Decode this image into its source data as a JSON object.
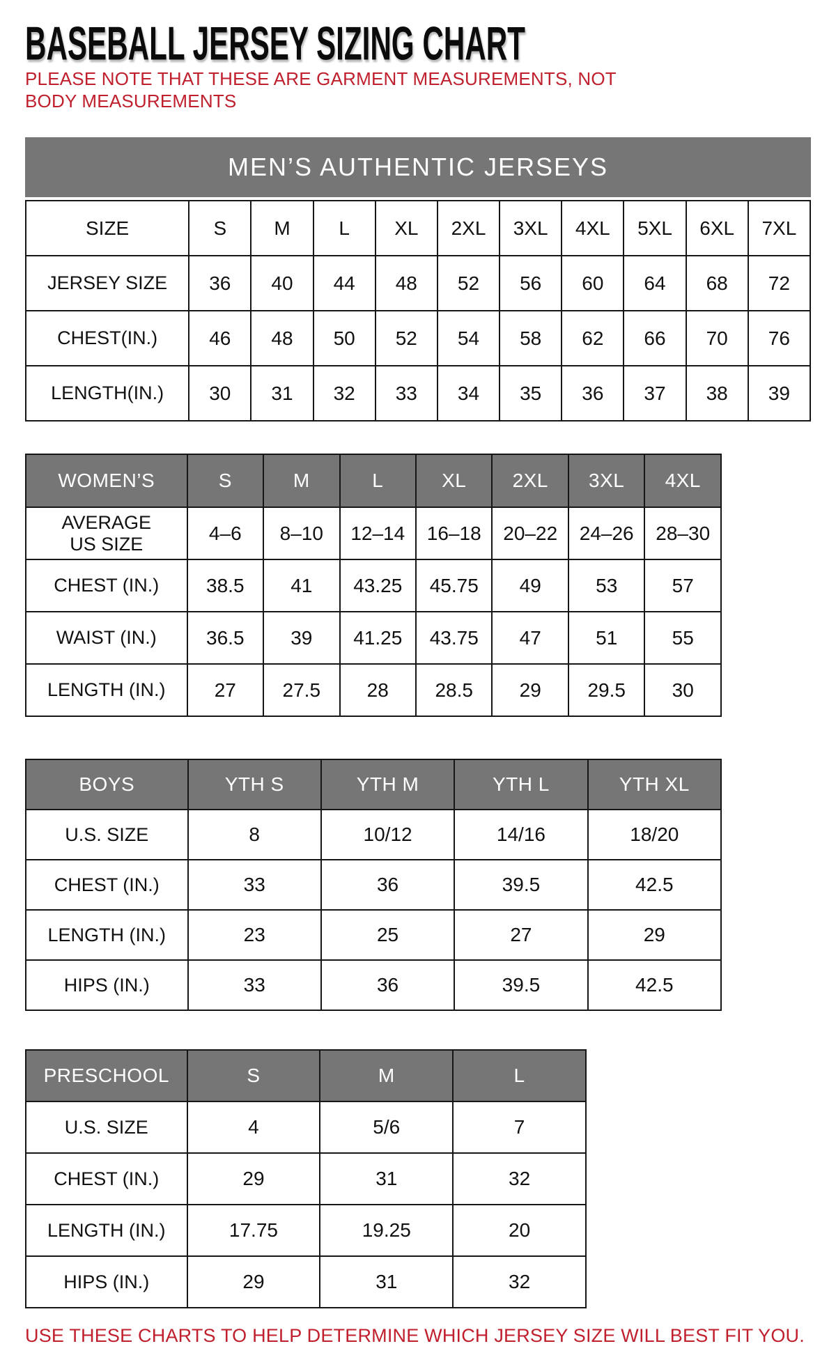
{
  "page": {
    "title": "BASEBALL JERSEY SIZING CHART",
    "note": "PLEASE NOTE THAT THESE ARE GARMENT MEASUREMENTS, NOT BODY MEASUREMENTS",
    "footer": "USE THESE CHARTS TO HELP DETERMINE WHICH JERSEY SIZE WILL BEST FIT YOU.",
    "colors": {
      "accent_red": "#c0202e",
      "header_gray": "#767676",
      "border_dark": "#161616"
    }
  },
  "tables": {
    "mens": {
      "banner": "MEN’S AUTHENTIC JERSEYS",
      "header": [
        "SIZE",
        "S",
        "M",
        "L",
        "XL",
        "2XL",
        "3XL",
        "4XL",
        "5XL",
        "6XL",
        "7XL"
      ],
      "rows": [
        [
          "JERSEY SIZE",
          "36",
          "40",
          "44",
          "48",
          "52",
          "56",
          "60",
          "64",
          "68",
          "72"
        ],
        [
          "CHEST(IN.)",
          "46",
          "48",
          "50",
          "52",
          "54",
          "58",
          "62",
          "66",
          "70",
          "76"
        ],
        [
          "LENGTH(IN.)",
          "30",
          "31",
          "32",
          "33",
          "34",
          "35",
          "36",
          "37",
          "38",
          "39"
        ]
      ]
    },
    "womens": {
      "header": [
        "WOMEN’S",
        "S",
        "M",
        "L",
        "XL",
        "2XL",
        "3XL",
        "4XL"
      ],
      "rows": [
        [
          "AVERAGE\nUS SIZE",
          "4–6",
          "8–10",
          "12–14",
          "16–18",
          "20–22",
          "24–26",
          "28–30"
        ],
        [
          "CHEST (IN.)",
          "38.5",
          "41",
          "43.25",
          "45.75",
          "49",
          "53",
          "57"
        ],
        [
          "WAIST (IN.)",
          "36.5",
          "39",
          "41.25",
          "43.75",
          "47",
          "51",
          "55"
        ],
        [
          "LENGTH (IN.)",
          "27",
          "27.5",
          "28",
          "28.5",
          "29",
          "29.5",
          "30"
        ]
      ]
    },
    "boys": {
      "header": [
        "BOYS",
        "YTH S",
        "YTH M",
        "YTH L",
        "YTH XL"
      ],
      "rows": [
        [
          "U.S. SIZE",
          "8",
          "10/12",
          "14/16",
          "18/20"
        ],
        [
          "CHEST (IN.)",
          "33",
          "36",
          "39.5",
          "42.5"
        ],
        [
          "LENGTH (IN.)",
          "23",
          "25",
          "27",
          "29"
        ],
        [
          "HIPS (IN.)",
          "33",
          "36",
          "39.5",
          "42.5"
        ]
      ]
    },
    "preschool": {
      "header": [
        "PRESCHOOL",
        "S",
        "M",
        "L"
      ],
      "rows": [
        [
          "U.S. SIZE",
          "4",
          "5/6",
          "7"
        ],
        [
          "CHEST (IN.)",
          "29",
          "31",
          "32"
        ],
        [
          "LENGTH (IN.)",
          "17.75",
          "19.25",
          "20"
        ],
        [
          "HIPS (IN.)",
          "29",
          "31",
          "32"
        ]
      ]
    }
  }
}
